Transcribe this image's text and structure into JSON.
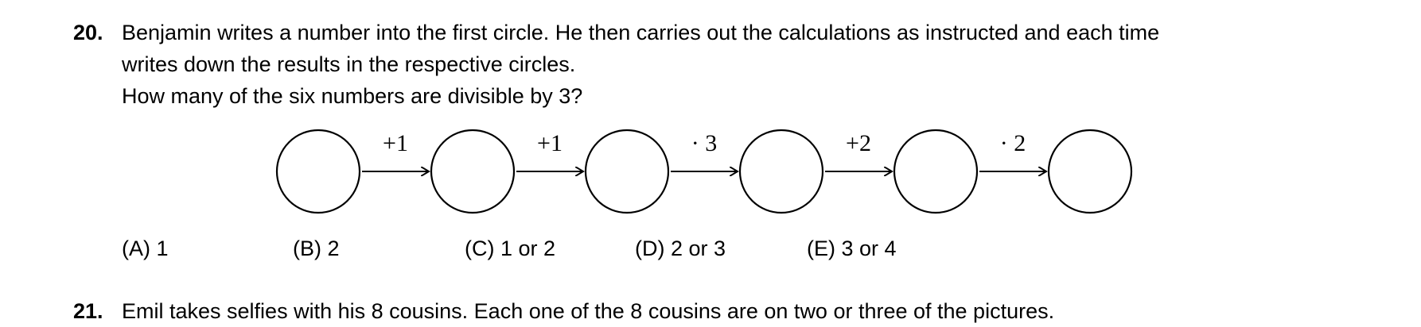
{
  "q20": {
    "number": "20",
    "line1": "Benjamin writes a number into the first circle. He then carries out the calculations as instructed and each time",
    "line2": "writes down the results in the respective circles.",
    "line3": "How many of the six numbers are divisible by 3?",
    "operations": [
      "+1",
      "+1",
      "· 3",
      "+2",
      "· 2"
    ],
    "answers": [
      {
        "letter": "(A)",
        "text": "1"
      },
      {
        "letter": "(B)",
        "text": "2"
      },
      {
        "letter": "(C)",
        "text": "1 or 2"
      },
      {
        "letter": "(D)",
        "text": "2 or 3"
      },
      {
        "letter": "(E)",
        "text": "3 or 4"
      }
    ]
  },
  "q21": {
    "number": "21",
    "line1": "Emil takes selfies with his 8 cousins. Each one of the 8 cousins are on two or three of the pictures."
  }
}
